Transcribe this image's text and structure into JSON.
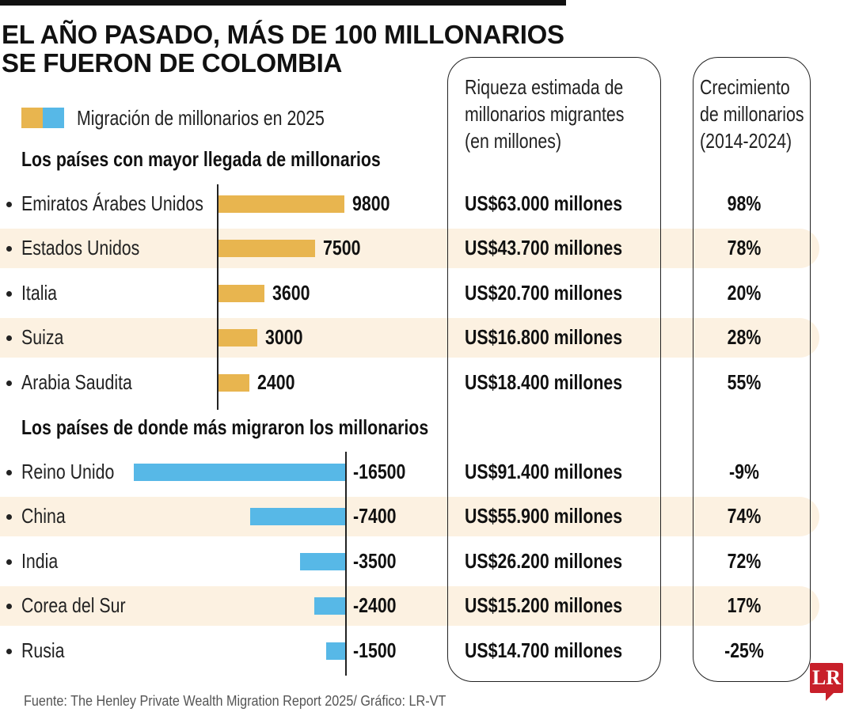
{
  "title_line1": "EL AÑO PASADO, MÁS DE 100 MILLONARIOS",
  "title_line2": "SE FUERON DE COLOMBIA",
  "legend": "Migración de millonarios en 2025",
  "column_headers": {
    "wealth": [
      "Riqueza estimada de",
      "millonarios migrantes",
      "(en millones)"
    ],
    "growth": [
      "Crecimiento",
      "de millonarios",
      "(2014-2024)"
    ]
  },
  "colors": {
    "arrivals": "#e8b54f",
    "departures": "#57b8e7",
    "highlight": "#fcf1e1",
    "logo": "#c8202a"
  },
  "footer": "Fuente: The Henley Private Wealth Migration Report 2025/ Gráfico: LR-VT",
  "logo_text": "LR",
  "chart_data": {
    "type": "bar",
    "orientation": "horizontal",
    "series": [
      {
        "section_title": "Los países con mayor llegada de millonarios",
        "categories": [
          "Emiratos Árabes Unidos",
          "Estados Unidos",
          "Italia",
          "Suiza",
          "Arabia Saudita"
        ],
        "values": [
          9800,
          7500,
          3600,
          3000,
          2400
        ],
        "labels": [
          "9800",
          "7500",
          "3600",
          "3000",
          "2400"
        ],
        "wealth": [
          "US$63.000 millones",
          "US$43.700 millones",
          "US$20.700 millones",
          "US$16.800 millones",
          "US$18.400 millones"
        ],
        "growth": [
          "98%",
          "78%",
          "20%",
          "28%",
          "55%"
        ]
      },
      {
        "section_title": "Los países de donde más migraron los millonarios",
        "categories": [
          "Reino Unido",
          "China",
          "India",
          "Corea del Sur",
          "Rusia"
        ],
        "values": [
          -16500,
          -7400,
          -3500,
          -2400,
          -1500
        ],
        "labels": [
          "-16500",
          "-7400",
          "-3500",
          "-2400",
          "-1500"
        ],
        "wealth": [
          "US$91.400 millones",
          "US$55.900 millones",
          "US$26.200 millones",
          "US$15.200 millones",
          "US$14.700 millones"
        ],
        "growth": [
          "-9%",
          "74%",
          "72%",
          "17%",
          "-25%"
        ]
      }
    ]
  }
}
